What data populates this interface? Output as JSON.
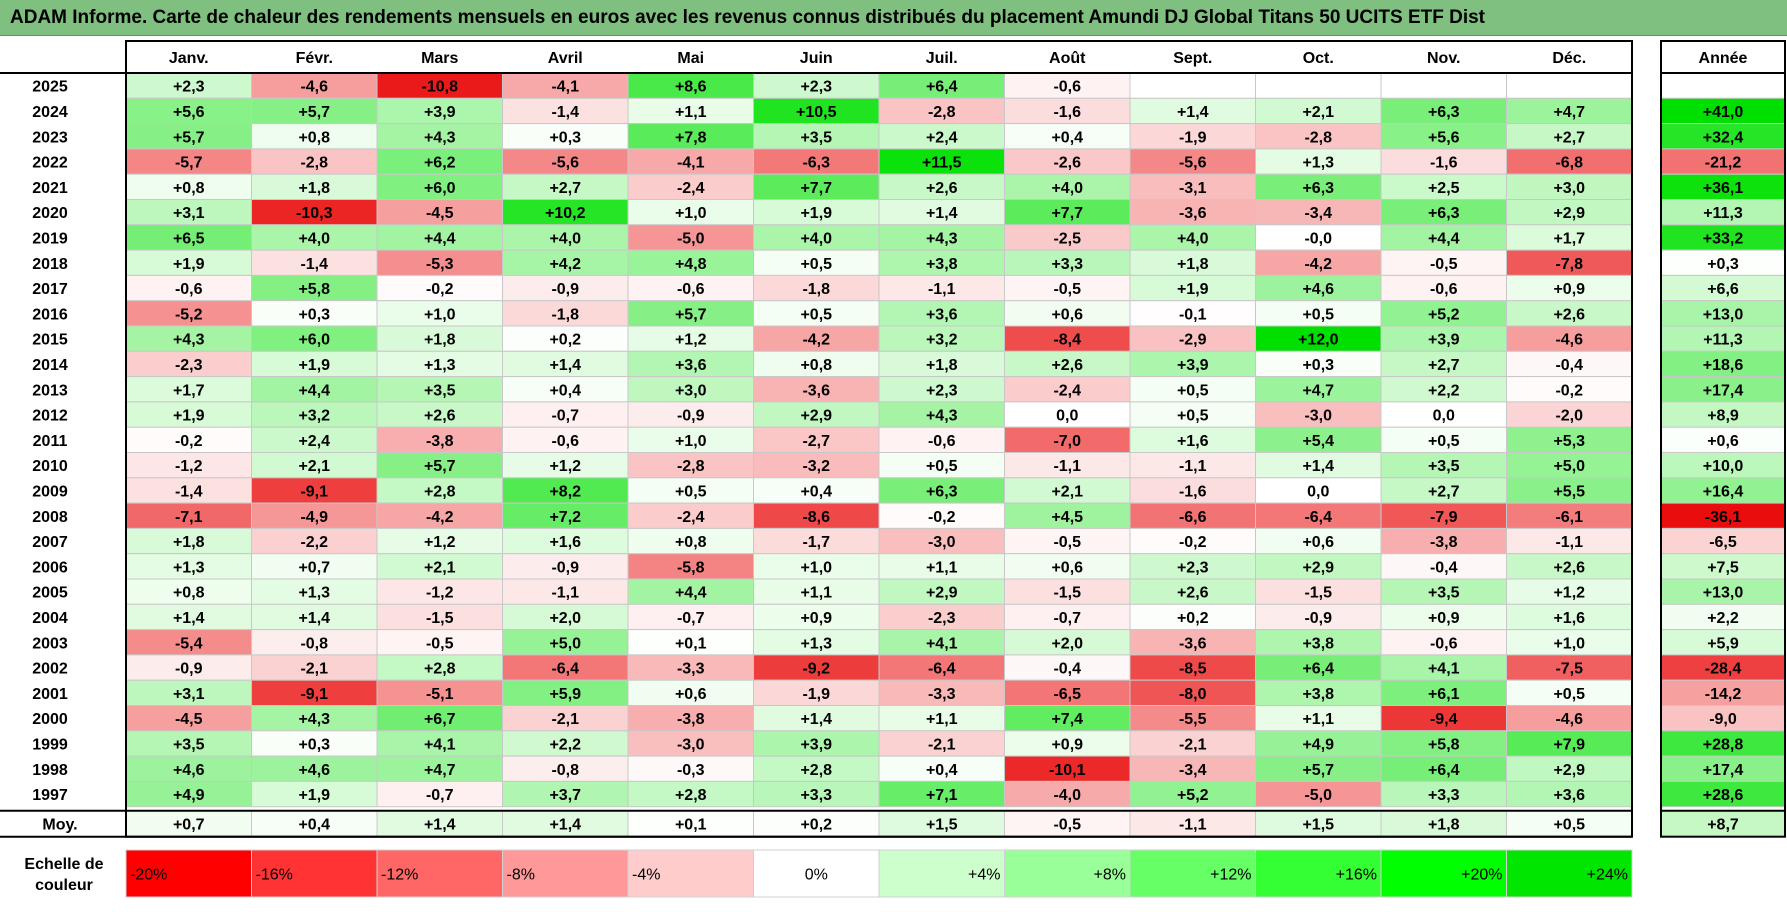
{
  "title": "ADAM Informe. Carte de chaleur des rendements mensuels en euros avec les revenus connus distribués du placement Amundi DJ Global Titans 50 UCITS ETF Dist",
  "chart_data": {
    "type": "heatmap",
    "columns": [
      "Janv.",
      "Févr.",
      "Mars",
      "Avril",
      "Mai",
      "Juin",
      "Juil.",
      "Août",
      "Sept.",
      "Oct.",
      "Nov.",
      "Déc."
    ],
    "year_column_label": "Année",
    "rows": [
      {
        "year": "2025",
        "months": [
          "+2,3",
          "-4,6",
          "-10,8",
          "-4,1",
          "+8,6",
          "+2,3",
          "+6,4",
          "-0,6",
          "",
          "",
          "",
          ""
        ],
        "annual": ""
      },
      {
        "year": "2024",
        "months": [
          "+5,6",
          "+5,7",
          "+3,9",
          "-1,4",
          "+1,1",
          "+10,5",
          "-2,8",
          "-1,6",
          "+1,4",
          "+2,1",
          "+6,3",
          "+4,7"
        ],
        "annual": "+41,0"
      },
      {
        "year": "2023",
        "months": [
          "+5,7",
          "+0,8",
          "+4,3",
          "+0,3",
          "+7,8",
          "+3,5",
          "+2,4",
          "+0,4",
          "-1,9",
          "-2,8",
          "+5,6",
          "+2,7"
        ],
        "annual": "+32,4"
      },
      {
        "year": "2022",
        "months": [
          "-5,7",
          "-2,8",
          "+6,2",
          "-5,6",
          "-4,1",
          "-6,3",
          "+11,5",
          "-2,6",
          "-5,6",
          "+1,3",
          "-1,6",
          "-6,8"
        ],
        "annual": "-21,2"
      },
      {
        "year": "2021",
        "months": [
          "+0,8",
          "+1,8",
          "+6,0",
          "+2,7",
          "-2,4",
          "+7,7",
          "+2,6",
          "+4,0",
          "-3,1",
          "+6,3",
          "+2,5",
          "+3,0"
        ],
        "annual": "+36,1"
      },
      {
        "year": "2020",
        "months": [
          "+3,1",
          "-10,3",
          "-4,5",
          "+10,2",
          "+1,0",
          "+1,9",
          "+1,4",
          "+7,7",
          "-3,6",
          "-3,4",
          "+6,3",
          "+2,9"
        ],
        "annual": "+11,3"
      },
      {
        "year": "2019",
        "months": [
          "+6,5",
          "+4,0",
          "+4,4",
          "+4,0",
          "-5,0",
          "+4,0",
          "+4,3",
          "-2,5",
          "+4,0",
          "-0,0",
          "+4,4",
          "+1,7"
        ],
        "annual": "+33,2"
      },
      {
        "year": "2018",
        "months": [
          "+1,9",
          "-1,4",
          "-5,3",
          "+4,2",
          "+4,8",
          "+0,5",
          "+3,8",
          "+3,3",
          "+1,8",
          "-4,2",
          "-0,5",
          "-7,8"
        ],
        "annual": "+0,3"
      },
      {
        "year": "2017",
        "months": [
          "-0,6",
          "+5,8",
          "-0,2",
          "-0,9",
          "-0,6",
          "-1,8",
          "-1,1",
          "-0,5",
          "+1,9",
          "+4,6",
          "-0,6",
          "+0,9"
        ],
        "annual": "+6,6"
      },
      {
        "year": "2016",
        "months": [
          "-5,2",
          "+0,3",
          "+1,0",
          "-1,8",
          "+5,7",
          "+0,5",
          "+3,6",
          "+0,6",
          "-0,1",
          "+0,5",
          "+5,2",
          "+2,6"
        ],
        "annual": "+13,0"
      },
      {
        "year": "2015",
        "months": [
          "+4,3",
          "+6,0",
          "+1,8",
          "+0,2",
          "+1,2",
          "-4,2",
          "+3,2",
          "-8,4",
          "-2,9",
          "+12,0",
          "+3,9",
          "-4,6"
        ],
        "annual": "+11,3"
      },
      {
        "year": "2014",
        "months": [
          "-2,3",
          "+1,9",
          "+1,3",
          "+1,4",
          "+3,6",
          "+0,8",
          "+1,8",
          "+2,6",
          "+3,9",
          "+0,3",
          "+2,7",
          "-0,4"
        ],
        "annual": "+18,6"
      },
      {
        "year": "2013",
        "months": [
          "+1,7",
          "+4,4",
          "+3,5",
          "+0,4",
          "+3,0",
          "-3,6",
          "+2,3",
          "-2,4",
          "+0,5",
          "+4,7",
          "+2,2",
          "-0,2"
        ],
        "annual": "+17,4"
      },
      {
        "year": "2012",
        "months": [
          "+1,9",
          "+3,2",
          "+2,6",
          "-0,7",
          "-0,9",
          "+2,9",
          "+4,3",
          "0,0",
          "+0,5",
          "-3,0",
          "0,0",
          "-2,0"
        ],
        "annual": "+8,9"
      },
      {
        "year": "2011",
        "months": [
          "-0,2",
          "+2,4",
          "-3,8",
          "-0,6",
          "+1,0",
          "-2,7",
          "-0,6",
          "-7,0",
          "+1,6",
          "+5,4",
          "+0,5",
          "+5,3"
        ],
        "annual": "+0,6"
      },
      {
        "year": "2010",
        "months": [
          "-1,2",
          "+2,1",
          "+5,7",
          "+1,2",
          "-2,8",
          "-3,2",
          "+0,5",
          "-1,1",
          "-1,1",
          "+1,4",
          "+3,5",
          "+5,0"
        ],
        "annual": "+10,0"
      },
      {
        "year": "2009",
        "months": [
          "-1,4",
          "-9,1",
          "+2,8",
          "+8,2",
          "+0,5",
          "+0,4",
          "+6,3",
          "+2,1",
          "-1,6",
          "0,0",
          "+2,7",
          "+5,5"
        ],
        "annual": "+16,4"
      },
      {
        "year": "2008",
        "months": [
          "-7,1",
          "-4,9",
          "-4,2",
          "+7,2",
          "-2,4",
          "-8,6",
          "-0,2",
          "+4,5",
          "-6,6",
          "-6,4",
          "-7,9",
          "-6,1"
        ],
        "annual": "-36,1"
      },
      {
        "year": "2007",
        "months": [
          "+1,8",
          "-2,2",
          "+1,2",
          "+1,6",
          "+0,8",
          "-1,7",
          "-3,0",
          "-0,5",
          "-0,2",
          "+0,6",
          "-3,8",
          "-1,1"
        ],
        "annual": "-6,5"
      },
      {
        "year": "2006",
        "months": [
          "+1,3",
          "+0,7",
          "+2,1",
          "-0,9",
          "-5,8",
          "+1,0",
          "+1,1",
          "+0,6",
          "+2,3",
          "+2,9",
          "-0,4",
          "+2,6"
        ],
        "annual": "+7,5"
      },
      {
        "year": "2005",
        "months": [
          "+0,8",
          "+1,3",
          "-1,2",
          "-1,1",
          "+4,4",
          "+1,1",
          "+2,9",
          "-1,5",
          "+2,6",
          "-1,5",
          "+3,5",
          "+1,2"
        ],
        "annual": "+13,0"
      },
      {
        "year": "2004",
        "months": [
          "+1,4",
          "+1,4",
          "-1,5",
          "+2,0",
          "-0,7",
          "+0,9",
          "-2,3",
          "-0,7",
          "+0,2",
          "-0,9",
          "+0,9",
          "+1,6"
        ],
        "annual": "+2,2"
      },
      {
        "year": "2003",
        "months": [
          "-5,4",
          "-0,8",
          "-0,5",
          "+5,0",
          "+0,1",
          "+1,3",
          "+4,1",
          "+2,0",
          "-3,6",
          "+3,8",
          "-0,6",
          "+1,0"
        ],
        "annual": "+5,9"
      },
      {
        "year": "2002",
        "months": [
          "-0,9",
          "-2,1",
          "+2,8",
          "-6,4",
          "-3,3",
          "-9,2",
          "-6,4",
          "-0,4",
          "-8,5",
          "+6,4",
          "+4,1",
          "-7,5"
        ],
        "annual": "-28,4"
      },
      {
        "year": "2001",
        "months": [
          "+3,1",
          "-9,1",
          "-5,1",
          "+5,9",
          "+0,6",
          "-1,9",
          "-3,3",
          "-6,5",
          "-8,0",
          "+3,8",
          "+6,1",
          "+0,5"
        ],
        "annual": "-14,2"
      },
      {
        "year": "2000",
        "months": [
          "-4,5",
          "+4,3",
          "+6,7",
          "-2,1",
          "-3,8",
          "+1,4",
          "+1,1",
          "+7,4",
          "-5,5",
          "+1,1",
          "-9,4",
          "-4,6"
        ],
        "annual": "-9,0"
      },
      {
        "year": "1999",
        "months": [
          "+3,5",
          "+0,3",
          "+4,1",
          "+2,2",
          "-3,0",
          "+3,9",
          "-2,1",
          "+0,9",
          "-2,1",
          "+4,9",
          "+5,8",
          "+7,9"
        ],
        "annual": "+28,8"
      },
      {
        "year": "1998",
        "months": [
          "+4,6",
          "+4,6",
          "+4,7",
          "-0,8",
          "-0,3",
          "+2,8",
          "+0,4",
          "-10,1",
          "-3,4",
          "+5,7",
          "+6,4",
          "+2,9"
        ],
        "annual": "+17,4"
      },
      {
        "year": "1997",
        "months": [
          "+4,9",
          "+1,9",
          "-0,7",
          "+3,7",
          "+2,8",
          "+3,3",
          "+7,1",
          "-4,0",
          "+5,2",
          "-5,0",
          "+3,3",
          "+3,6"
        ],
        "annual": "+28,6"
      }
    ],
    "average": {
      "label": "Moy.",
      "months": [
        "+0,7",
        "+0,4",
        "+1,4",
        "+1,4",
        "+0,1",
        "+0,2",
        "+1,5",
        "-0,5",
        "-1,1",
        "+1,5",
        "+1,8",
        "+0,5"
      ],
      "annual": "+8,7"
    },
    "scale": {
      "label_line1": "Echelle de",
      "label_line2": "couleur",
      "stops": [
        {
          "label": "-20%",
          "color": "#ff0000"
        },
        {
          "label": "-16%",
          "color": "#ff3333"
        },
        {
          "label": "-12%",
          "color": "#ff6666"
        },
        {
          "label": "-8%",
          "color": "#ff9999"
        },
        {
          "label": "-4%",
          "color": "#ffcccc"
        },
        {
          "label": "0%",
          "color": "#ffffff"
        },
        {
          "label": "+4%",
          "color": "#ccffcc"
        },
        {
          "label": "+8%",
          "color": "#99ff99"
        },
        {
          "label": "+12%",
          "color": "#66ff66"
        },
        {
          "label": "+16%",
          "color": "#33ff33"
        },
        {
          "label": "+20%",
          "color": "#00ff00"
        },
        {
          "label": "+24%",
          "color": "#00e600"
        }
      ]
    }
  }
}
